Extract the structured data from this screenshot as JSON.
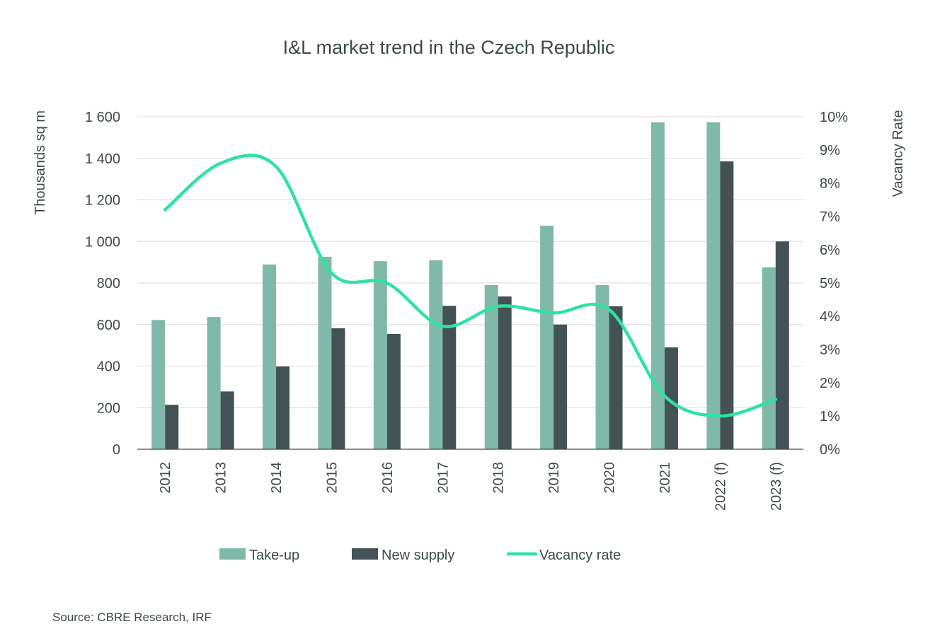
{
  "chart_data": {
    "type": "bar",
    "title": "I&L market trend in the Czech Republic",
    "ylabel": "Thousands sq m",
    "y2label": "Vacancy Rate",
    "ylim": [
      0,
      1600
    ],
    "y2lim": [
      0,
      10
    ],
    "yticks": [
      "0",
      "200",
      "400",
      "600",
      "800",
      "1 000",
      "1 200",
      "1 400",
      "1 600"
    ],
    "y2ticks": [
      "0%",
      "1%",
      "2%",
      "3%",
      "4%",
      "5%",
      "6%",
      "7%",
      "8%",
      "9%",
      "10%"
    ],
    "categories": [
      "2012",
      "2013",
      "2014",
      "2015",
      "2016",
      "2017",
      "2018",
      "2019",
      "2020",
      "2021",
      "2022 (f)",
      "2023 (f)"
    ],
    "series": [
      {
        "name": "Take-up",
        "type": "bar",
        "color": "#80b9aa",
        "values": [
          622,
          636,
          889,
          926,
          905,
          909,
          790,
          1076,
          790,
          1573,
          1573,
          875
        ]
      },
      {
        "name": "New supply",
        "type": "bar",
        "color": "#435254",
        "values": [
          214,
          278,
          398,
          582,
          555,
          690,
          735,
          600,
          688,
          490,
          1385,
          1000
        ]
      },
      {
        "name": "Vacancy rate",
        "type": "line",
        "axis": "right",
        "color": "#2ee3a0",
        "values": [
          7.2,
          8.6,
          8.5,
          5.3,
          5.0,
          3.7,
          4.3,
          4.1,
          4.2,
          1.6,
          1.0,
          1.5
        ]
      }
    ],
    "grid": true,
    "legend": "bottom"
  },
  "source": "Source: CBRE Research, IRF"
}
